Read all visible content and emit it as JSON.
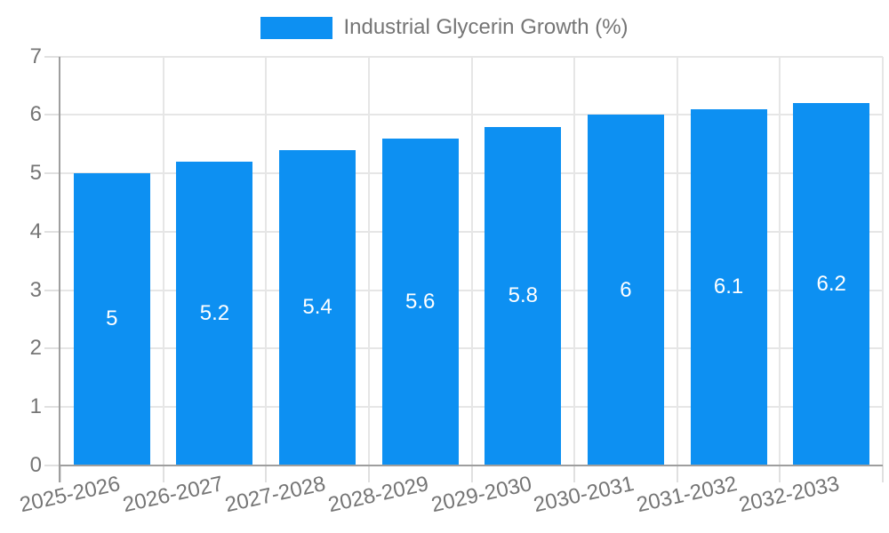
{
  "legend": {
    "label": "Industrial Glycerin Growth (%)"
  },
  "chart_data": {
    "type": "bar",
    "title": "",
    "xlabel": "",
    "ylabel": "",
    "categories": [
      "2025-2026",
      "2026-2027",
      "2027-2028",
      "2028-2029",
      "2029-2030",
      "2030-2031",
      "2031-2032",
      "2032-2033"
    ],
    "series": [
      {
        "name": "Industrial Glycerin Growth (%)",
        "values": [
          5,
          5.2,
          5.4,
          5.6,
          5.8,
          6,
          6.1,
          6.2
        ],
        "value_labels": [
          "5",
          "5.2",
          "5.4",
          "5.6",
          "5.8",
          "6",
          "6.1",
          "6.2"
        ]
      }
    ],
    "ylim": [
      0,
      7
    ],
    "yticks": [
      0,
      1,
      2,
      3,
      4,
      5,
      6,
      7
    ],
    "grid": true,
    "legend_position": "top-center",
    "x_label_rotation_deg": -12.5,
    "colors": {
      "bar": "#0d90f2",
      "grid": "#e6e6e6",
      "tick": "#e0e0e0",
      "axis": "#9e9e9e",
      "text": "#757575",
      "value_label": "#ffffff",
      "background": "#ffffff"
    }
  }
}
